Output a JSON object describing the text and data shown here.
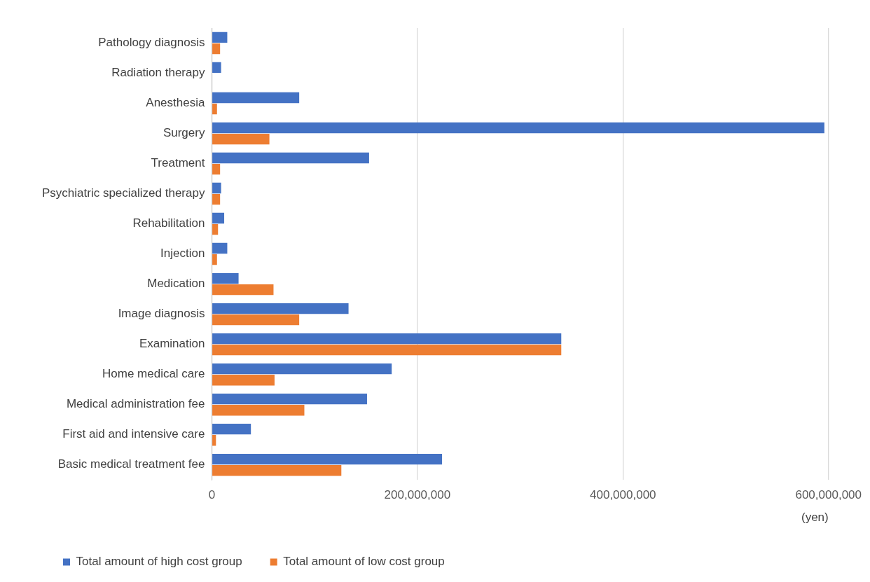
{
  "chart_data": {
    "type": "bar",
    "orientation": "horizontal",
    "xlabel": "(yen)",
    "categories": [
      "Pathology diagnosis",
      "Radiation therapy",
      "Anesthesia",
      "Surgery",
      "Treatment",
      "Psychiatric specialized therapy",
      "Rehabilitation",
      "Injection",
      "Medication",
      "Image diagnosis",
      "Examination",
      "Home medical care",
      "Medical administration fee",
      "First aid and intensive care",
      "Basic medical treatment fee"
    ],
    "series": [
      {
        "name": "Total amount of high cost group",
        "color": "#4472c4",
        "values": [
          15000000,
          9000000,
          85000000,
          596000000,
          153000000,
          9000000,
          12000000,
          15000000,
          26000000,
          133000000,
          340000000,
          175000000,
          151000000,
          38000000,
          224000000
        ]
      },
      {
        "name": "Total amount of low cost group",
        "color": "#ed7d31",
        "values": [
          8000000,
          0,
          5000000,
          56000000,
          8000000,
          8000000,
          6000000,
          5000000,
          60000000,
          85000000,
          340000000,
          61000000,
          90000000,
          4000000,
          126000000
        ]
      }
    ],
    "xlim": [
      0,
      600000000
    ],
    "xticks": [
      0,
      {
        "value": 200000000,
        "label": "200,000,000"
      },
      {
        "value": 400000000,
        "label": "400,000,000"
      },
      {
        "value": 600000000,
        "label": "600,000,000"
      }
    ],
    "grid": "x",
    "legend": "bottom"
  }
}
